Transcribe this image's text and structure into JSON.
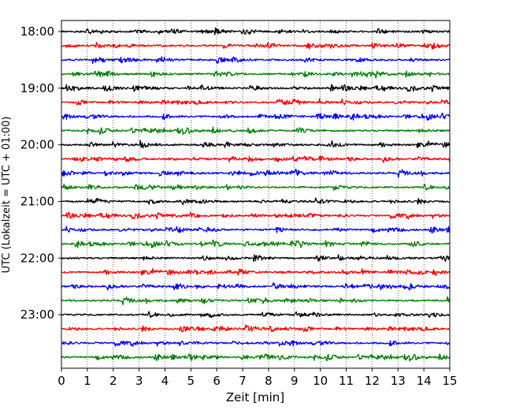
{
  "chart_data": {
    "type": "line",
    "title": "",
    "xlabel": "Zeit  [min]",
    "ylabel": "UTC (Lokalzeit = UTC + 01:00)",
    "xlim": [
      0,
      15
    ],
    "x_ticks": [
      "0",
      "1",
      "2",
      "3",
      "4",
      "5",
      "6",
      "7",
      "8",
      "9",
      "10",
      "11",
      "12",
      "13",
      "14",
      "15"
    ],
    "y_ticks": [
      "18:00",
      "19:00",
      "20:00",
      "21:00",
      "22:00",
      "23:00"
    ],
    "grid": "vertical dotted lines at each minute",
    "trace_interval_minutes": 15,
    "traces": [
      {
        "start": "18:00",
        "color": "#000000"
      },
      {
        "start": "18:15",
        "color": "#ff0000"
      },
      {
        "start": "18:30",
        "color": "#0000ff"
      },
      {
        "start": "18:45",
        "color": "#008000"
      },
      {
        "start": "19:00",
        "color": "#000000"
      },
      {
        "start": "19:15",
        "color": "#ff0000"
      },
      {
        "start": "19:30",
        "color": "#0000ff"
      },
      {
        "start": "19:45",
        "color": "#008000"
      },
      {
        "start": "20:00",
        "color": "#000000"
      },
      {
        "start": "20:15",
        "color": "#ff0000"
      },
      {
        "start": "20:30",
        "color": "#0000ff"
      },
      {
        "start": "20:45",
        "color": "#008000"
      },
      {
        "start": "21:00",
        "color": "#000000"
      },
      {
        "start": "21:15",
        "color": "#ff0000"
      },
      {
        "start": "21:30",
        "color": "#0000ff"
      },
      {
        "start": "21:45",
        "color": "#008000"
      },
      {
        "start": "22:00",
        "color": "#000000"
      },
      {
        "start": "22:15",
        "color": "#ff0000"
      },
      {
        "start": "22:30",
        "color": "#0000ff"
      },
      {
        "start": "22:45",
        "color": "#008000"
      },
      {
        "start": "23:00",
        "color": "#000000"
      },
      {
        "start": "23:15",
        "color": "#ff0000"
      },
      {
        "start": "23:30",
        "color": "#0000ff"
      },
      {
        "start": "23:45",
        "color": "#008000"
      }
    ]
  }
}
